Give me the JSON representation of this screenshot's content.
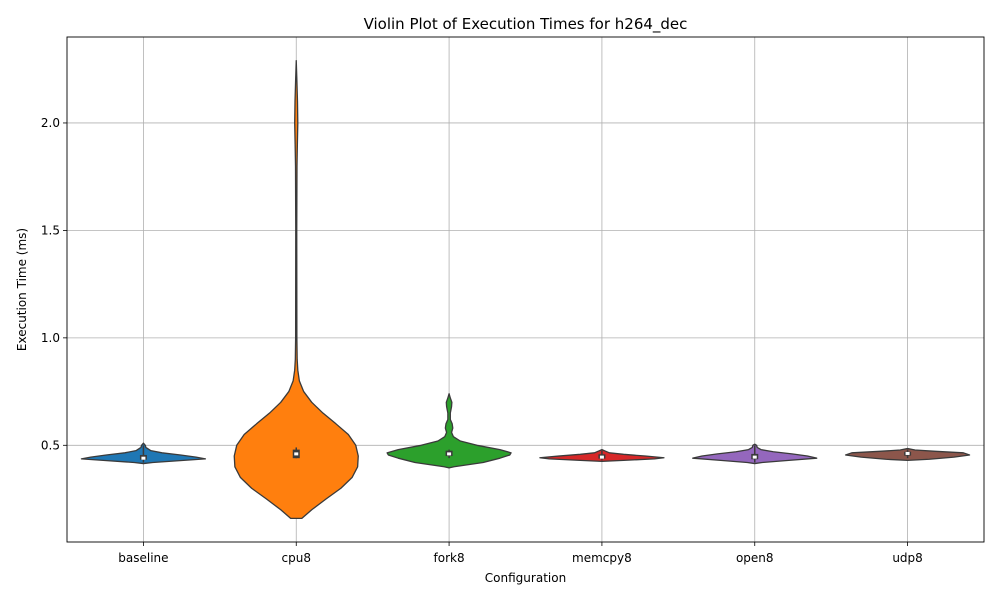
{
  "chart_data": {
    "type": "violin",
    "title": "Violin Plot of Execution Times for h264_dec",
    "xlabel": "Configuration",
    "ylabel": "Execution Time (ms)",
    "ylim": [
      0.05,
      2.4
    ],
    "yticks": [
      0.5,
      1.0,
      1.5,
      2.0
    ],
    "ytick_labels": [
      "0.5",
      "1.0",
      "1.5",
      "2.0"
    ],
    "grid": true,
    "categories": [
      "baseline",
      "cpu8",
      "fork8",
      "memcpy8",
      "open8",
      "udp8"
    ],
    "series": [
      {
        "category": "baseline",
        "color": "#1f77b4",
        "min": 0.415,
        "max": 0.51,
        "q1": 0.433,
        "median": 0.44,
        "q3": 0.455,
        "whisker_low": 0.42,
        "whisker_high": 0.5,
        "density": [
          [
            0.415,
            0
          ],
          [
            0.42,
            0.15
          ],
          [
            0.43,
            0.65
          ],
          [
            0.437,
            1.0
          ],
          [
            0.445,
            0.85
          ],
          [
            0.455,
            0.6
          ],
          [
            0.465,
            0.3
          ],
          [
            0.475,
            0.12
          ],
          [
            0.49,
            0.04
          ],
          [
            0.5,
            0.03
          ],
          [
            0.51,
            0
          ]
        ]
      },
      {
        "category": "cpu8",
        "color": "#ff7f0e",
        "min": 0.16,
        "max": 2.29,
        "q1": 0.44,
        "median": 0.46,
        "q3": 0.48,
        "whisker_low": 0.44,
        "whisker_high": 0.49,
        "density": [
          [
            0.16,
            0.09
          ],
          [
            0.2,
            0.25
          ],
          [
            0.25,
            0.48
          ],
          [
            0.3,
            0.72
          ],
          [
            0.35,
            0.9
          ],
          [
            0.4,
            0.99
          ],
          [
            0.45,
            1.0
          ],
          [
            0.5,
            0.96
          ],
          [
            0.55,
            0.84
          ],
          [
            0.6,
            0.64
          ],
          [
            0.65,
            0.43
          ],
          [
            0.7,
            0.25
          ],
          [
            0.75,
            0.12
          ],
          [
            0.8,
            0.05
          ],
          [
            0.85,
            0.025
          ],
          [
            0.9,
            0.015
          ],
          [
            1.0,
            0.01
          ],
          [
            1.5,
            0.008
          ],
          [
            1.8,
            0.012
          ],
          [
            1.9,
            0.018
          ],
          [
            2.0,
            0.025
          ],
          [
            2.1,
            0.02
          ],
          [
            2.2,
            0.01
          ],
          [
            2.29,
            0
          ]
        ]
      },
      {
        "category": "fork8",
        "color": "#2ca02c",
        "min": 0.395,
        "max": 0.74,
        "q1": 0.45,
        "median": 0.46,
        "q3": 0.475,
        "whisker_low": 0.44,
        "whisker_high": 0.48,
        "density": [
          [
            0.395,
            0
          ],
          [
            0.4,
            0.08
          ],
          [
            0.42,
            0.55
          ],
          [
            0.44,
            0.82
          ],
          [
            0.455,
            0.98
          ],
          [
            0.465,
            1.0
          ],
          [
            0.48,
            0.82
          ],
          [
            0.5,
            0.45
          ],
          [
            0.52,
            0.18
          ],
          [
            0.54,
            0.07
          ],
          [
            0.56,
            0.04
          ],
          [
            0.58,
            0.06
          ],
          [
            0.6,
            0.05
          ],
          [
            0.62,
            0.02
          ],
          [
            0.65,
            0.02
          ],
          [
            0.68,
            0.04
          ],
          [
            0.7,
            0.045
          ],
          [
            0.72,
            0.02
          ],
          [
            0.74,
            0
          ]
        ]
      },
      {
        "category": "memcpy8",
        "color": "#d62728",
        "min": 0.425,
        "max": 0.48,
        "q1": 0.438,
        "median": 0.445,
        "q3": 0.458,
        "whisker_low": 0.43,
        "whisker_high": 0.475,
        "density": [
          [
            0.425,
            0
          ],
          [
            0.43,
            0.35
          ],
          [
            0.437,
            0.85
          ],
          [
            0.442,
            1.0
          ],
          [
            0.45,
            0.7
          ],
          [
            0.458,
            0.35
          ],
          [
            0.465,
            0.12
          ],
          [
            0.475,
            0.04
          ],
          [
            0.48,
            0
          ]
        ]
      },
      {
        "category": "open8",
        "color": "#9467bd",
        "min": 0.415,
        "max": 0.505,
        "q1": 0.435,
        "median": 0.445,
        "q3": 0.46,
        "whisker_low": 0.42,
        "whisker_high": 0.5,
        "density": [
          [
            0.415,
            0
          ],
          [
            0.42,
            0.12
          ],
          [
            0.43,
            0.55
          ],
          [
            0.44,
            1.0
          ],
          [
            0.45,
            0.85
          ],
          [
            0.46,
            0.6
          ],
          [
            0.47,
            0.3
          ],
          [
            0.48,
            0.1
          ],
          [
            0.49,
            0.04
          ],
          [
            0.5,
            0.03
          ],
          [
            0.505,
            0
          ]
        ]
      },
      {
        "category": "udp8",
        "color": "#8c564b",
        "min": 0.43,
        "max": 0.485,
        "q1": 0.452,
        "median": 0.462,
        "q3": 0.47,
        "whisker_low": 0.44,
        "whisker_high": 0.48,
        "density": [
          [
            0.43,
            0
          ],
          [
            0.435,
            0.35
          ],
          [
            0.445,
            0.75
          ],
          [
            0.455,
            1.0
          ],
          [
            0.465,
            0.9
          ],
          [
            0.472,
            0.45
          ],
          [
            0.478,
            0.12
          ],
          [
            0.485,
            0
          ]
        ]
      }
    ]
  }
}
